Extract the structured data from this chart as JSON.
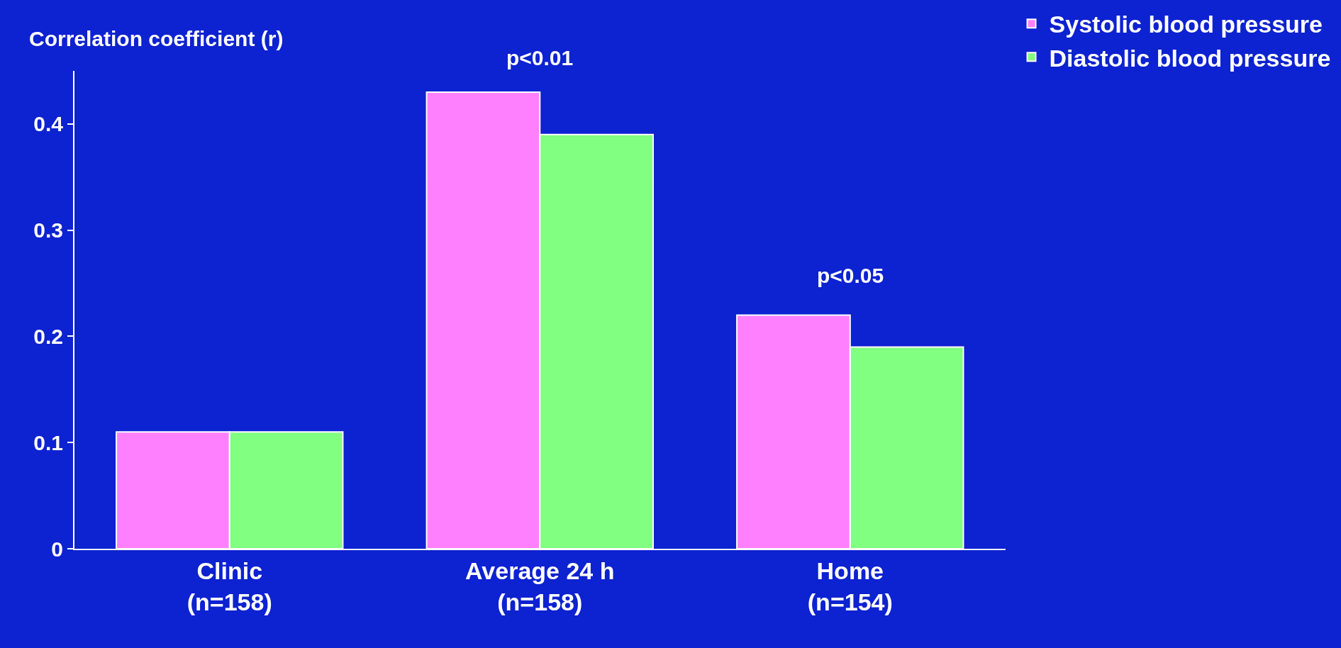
{
  "chart_data": {
    "type": "bar",
    "ylabel": "Correlation coefficient (r)",
    "categories": [
      "Clinic\n(n=158)",
      "Average 24 h\n(n=158)",
      "Home\n(n=154)"
    ],
    "series": [
      {
        "name": "Systolic blood pressure",
        "color": "#ff80ff",
        "values": [
          0.11,
          0.43,
          0.22
        ]
      },
      {
        "name": "Diastolic blood pressure",
        "color": "#80ff80",
        "values": [
          0.11,
          0.39,
          0.19
        ]
      }
    ],
    "ylim": [
      0,
      0.45
    ],
    "yticks": [
      0,
      0.1,
      0.2,
      0.3,
      0.4
    ],
    "grid": false,
    "legend": "top right",
    "annotations": [
      "p<0.01",
      "p<0.05"
    ]
  }
}
